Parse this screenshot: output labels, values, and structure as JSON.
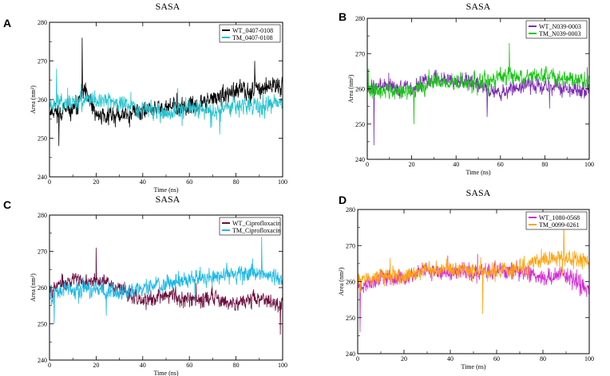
{
  "figure": {
    "panels": [
      "A",
      "B",
      "C",
      "D"
    ]
  },
  "chart_data": [
    {
      "panel": "A",
      "type": "line",
      "title": "SASA",
      "xlabel": "Time (ns)",
      "ylabel": "Area (nm²)",
      "xlim": [
        0,
        100
      ],
      "ylim": [
        240,
        280
      ],
      "xticks": [
        0,
        20,
        40,
        60,
        80,
        100
      ],
      "yticks": [
        240,
        250,
        260,
        270,
        280
      ],
      "legend_position": "top-right",
      "series": [
        {
          "name": "WT_0407-0108",
          "color": "#000000",
          "seed": 11,
          "trend": [
            [
              0,
              257
            ],
            [
              10,
              257
            ],
            [
              15,
              262
            ],
            [
              20,
              256
            ],
            [
              30,
              256
            ],
            [
              40,
              257
            ],
            [
              50,
              258
            ],
            [
              60,
              258
            ],
            [
              70,
              260
            ],
            [
              80,
              262
            ],
            [
              90,
              263
            ],
            [
              100,
              264
            ]
          ],
          "noise": 3.2,
          "spikes": [
            [
              14,
              276
            ],
            [
              4,
              248
            ],
            [
              88,
              270
            ]
          ]
        },
        {
          "name": "TM_0407-0108",
          "color": "#22c3cf",
          "seed": 23,
          "trend": [
            [
              0,
              259
            ],
            [
              20,
              260
            ],
            [
              40,
              258
            ],
            [
              50,
              256
            ],
            [
              60,
              258
            ],
            [
              70,
              257
            ],
            [
              80,
              259
            ],
            [
              90,
              258
            ],
            [
              100,
              259
            ]
          ],
          "noise": 3.0,
          "spikes": [
            [
              3,
              268
            ],
            [
              73,
              251
            ]
          ]
        }
      ]
    },
    {
      "panel": "B",
      "type": "line",
      "title": "SASA",
      "xlabel": "Time (ns)",
      "ylabel": "Area (nm²)",
      "xlim": [
        0,
        100
      ],
      "ylim": [
        240,
        280
      ],
      "xticks": [
        0,
        20,
        40,
        60,
        80,
        100
      ],
      "yticks": [
        240,
        250,
        260,
        270,
        280
      ],
      "legend_position": "top-right",
      "series": [
        {
          "name": "WT_N039-0003",
          "color": "#7d2bb5",
          "seed": 37,
          "trend": [
            [
              0,
              261
            ],
            [
              20,
              260
            ],
            [
              30,
              263
            ],
            [
              40,
              263
            ],
            [
              50,
              261
            ],
            [
              60,
              259
            ],
            [
              70,
              261
            ],
            [
              80,
              261
            ],
            [
              90,
              260
            ],
            [
              100,
              259
            ]
          ],
          "noise": 3.0,
          "spikes": [
            [
              3,
              244
            ],
            [
              54,
              252
            ]
          ]
        },
        {
          "name": "TM_N039-0003",
          "color": "#19c515",
          "seed": 41,
          "trend": [
            [
              0,
              260
            ],
            [
              20,
              259
            ],
            [
              30,
              262
            ],
            [
              40,
              262
            ],
            [
              50,
              261
            ],
            [
              60,
              264
            ],
            [
              70,
              263
            ],
            [
              80,
              264
            ],
            [
              90,
              263
            ],
            [
              100,
              262
            ]
          ],
          "noise": 3.0,
          "spikes": [
            [
              64,
              273
            ],
            [
              21,
              250
            ]
          ]
        }
      ]
    },
    {
      "panel": "C",
      "type": "line",
      "title": "SASA",
      "xlabel": "Time (ns)",
      "ylabel": "Area (nm²)",
      "xlim": [
        0,
        100
      ],
      "ylim": [
        240,
        280
      ],
      "xticks": [
        0,
        20,
        40,
        60,
        80,
        100
      ],
      "yticks": [
        240,
        250,
        260,
        270,
        280
      ],
      "legend_position": "top-right",
      "series": [
        {
          "name": "WT_Ciprofloxacin",
          "color": "#6b0f3e",
          "seed": 53,
          "trend": [
            [
              0,
              260
            ],
            [
              10,
              262
            ],
            [
              20,
              262
            ],
            [
              30,
              260
            ],
            [
              40,
              256
            ],
            [
              50,
              258
            ],
            [
              60,
              257
            ],
            [
              70,
              257
            ],
            [
              80,
              256
            ],
            [
              90,
              257
            ],
            [
              100,
              255
            ]
          ],
          "noise": 3.0,
          "spikes": [
            [
              20,
              271
            ],
            [
              99,
              247
            ]
          ]
        },
        {
          "name": "TM_Ciprofloxacin",
          "color": "#1cb8e6",
          "seed": 67,
          "trend": [
            [
              0,
              258
            ],
            [
              10,
              260
            ],
            [
              20,
              259
            ],
            [
              30,
              259
            ],
            [
              40,
              260
            ],
            [
              50,
              261
            ],
            [
              60,
              262
            ],
            [
              70,
              263
            ],
            [
              80,
              264
            ],
            [
              90,
              264
            ],
            [
              100,
              262
            ]
          ],
          "noise": 3.0,
          "spikes": [
            [
              91,
              274
            ],
            [
              2,
              250
            ]
          ]
        }
      ]
    },
    {
      "panel": "D",
      "type": "line",
      "title": "SASA",
      "xlabel": "Time (ns)",
      "ylabel": "Area (nm²)",
      "xlim": [
        0,
        100
      ],
      "ylim": [
        240,
        280
      ],
      "xticks": [
        0,
        20,
        40,
        60,
        80,
        100
      ],
      "yticks": [
        240,
        250,
        260,
        270,
        280
      ],
      "legend_position": "top-right",
      "series": [
        {
          "name": "WT_1080-0568",
          "color": "#d42bd4",
          "seed": 71,
          "trend": [
            [
              0,
              258
            ],
            [
              10,
              261
            ],
            [
              20,
              261
            ],
            [
              30,
              263
            ],
            [
              40,
              263
            ],
            [
              50,
              262
            ],
            [
              60,
              263
            ],
            [
              70,
              263
            ],
            [
              80,
              261
            ],
            [
              90,
              262
            ],
            [
              100,
              258
            ]
          ],
          "noise": 3.0,
          "spikes": [
            [
              1,
              246
            ],
            [
              96,
              256
            ]
          ]
        },
        {
          "name": "TM_0099-0261",
          "color": "#ffa10a",
          "seed": 83,
          "trend": [
            [
              0,
              260
            ],
            [
              10,
              262
            ],
            [
              20,
              261
            ],
            [
              30,
              263
            ],
            [
              40,
              264
            ],
            [
              50,
              263
            ],
            [
              60,
              263
            ],
            [
              70,
              264
            ],
            [
              80,
              266
            ],
            [
              90,
              267
            ],
            [
              100,
              265
            ]
          ],
          "noise": 3.0,
          "spikes": [
            [
              89,
              276
            ],
            [
              54,
              251
            ]
          ]
        }
      ]
    }
  ]
}
